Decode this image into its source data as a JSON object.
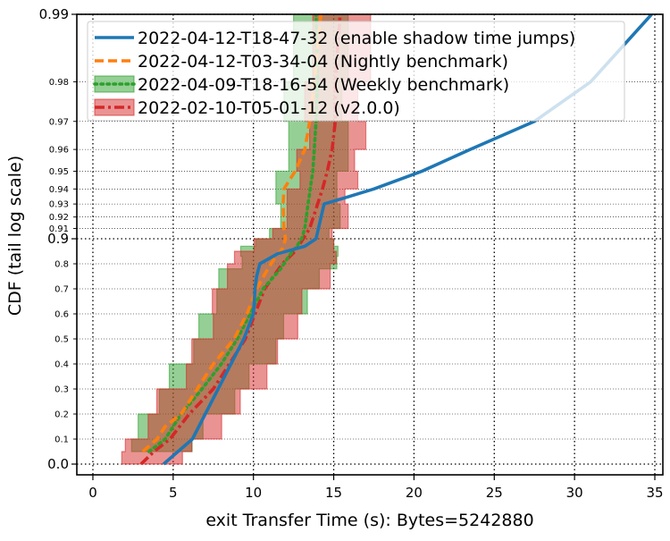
{
  "chart_data": {
    "type": "line",
    "xlabel": "exit Transfer Time (s): Bytes=5242880",
    "ylabel": "CDF (tail log scale)",
    "xlim": [
      -1,
      35.5
    ],
    "x_ticks": [
      "0",
      "5",
      "10",
      "15",
      "20",
      "25",
      "30",
      "35"
    ],
    "y_scale": "tail-log",
    "y_major_ticks": [
      "0.0",
      "0.9",
      "0.99"
    ],
    "y_minor_ticks": [
      "0.1",
      "0.2",
      "0.3",
      "0.4",
      "0.5",
      "0.6",
      "0.7",
      "0.8",
      "0.91",
      "0.92",
      "0.93",
      "0.94",
      "0.95",
      "0.96",
      "0.97",
      "0.98"
    ],
    "grid": true,
    "legend_position": "top",
    "series": [
      {
        "name": "2022-04-12-T18-47-32 (enable shadow time jumps)",
        "color": "#1f77b4",
        "style": "solid",
        "points": [
          [
            4.4,
            0.0
          ],
          [
            5.3,
            0.05
          ],
          [
            6.2,
            0.1
          ],
          [
            7.0,
            0.2
          ],
          [
            7.8,
            0.3
          ],
          [
            8.6,
            0.4
          ],
          [
            9.4,
            0.5
          ],
          [
            10.0,
            0.6
          ],
          [
            10.1,
            0.7
          ],
          [
            10.2,
            0.75
          ],
          [
            10.4,
            0.8
          ],
          [
            11.5,
            0.84
          ],
          [
            13.2,
            0.87
          ],
          [
            13.9,
            0.9
          ],
          [
            14.4,
            0.93
          ],
          [
            15.0,
            0.932
          ],
          [
            17.5,
            0.94
          ],
          [
            20.5,
            0.95
          ],
          [
            23.5,
            0.96
          ],
          [
            27.5,
            0.97
          ],
          [
            31.0,
            0.98
          ],
          [
            34.8,
            0.99
          ]
        ]
      },
      {
        "name": "2022-04-12-T03-34-04 (Nightly benchmark)",
        "color": "#ff7f0e",
        "style": "dashed",
        "points": [
          [
            3.1,
            0.05
          ],
          [
            4.0,
            0.1
          ],
          [
            4.5,
            0.15
          ],
          [
            5.5,
            0.2
          ],
          [
            6.5,
            0.3
          ],
          [
            7.5,
            0.4
          ],
          [
            8.8,
            0.5
          ],
          [
            9.6,
            0.6
          ],
          [
            10.2,
            0.7
          ],
          [
            10.9,
            0.78
          ],
          [
            11.3,
            0.82
          ],
          [
            11.8,
            0.86
          ],
          [
            12.0,
            0.9
          ],
          [
            11.9,
            0.91
          ],
          [
            11.85,
            0.93
          ],
          [
            11.9,
            0.94
          ],
          [
            12.6,
            0.95
          ],
          [
            13.2,
            0.96
          ],
          [
            13.5,
            0.97
          ],
          [
            13.8,
            0.98
          ],
          [
            14.2,
            0.99
          ]
        ]
      },
      {
        "name": "2022-04-09-T18-16-54 (Weekly benchmark)",
        "color": "#2ca02c",
        "style": "dotted",
        "points": [
          [
            3.5,
            0.05
          ],
          [
            4.5,
            0.1
          ],
          [
            5.5,
            0.2
          ],
          [
            6.8,
            0.3
          ],
          [
            8.0,
            0.4
          ],
          [
            9.0,
            0.5
          ],
          [
            9.8,
            0.6
          ],
          [
            10.6,
            0.7
          ],
          [
            11.7,
            0.78
          ],
          [
            12.2,
            0.83
          ],
          [
            12.7,
            0.87
          ],
          [
            13.0,
            0.9
          ],
          [
            13.2,
            0.91
          ],
          [
            13.4,
            0.93
          ],
          [
            13.7,
            0.95
          ],
          [
            13.9,
            0.97
          ],
          [
            14.0,
            0.98
          ],
          [
            13.9,
            0.99
          ]
        ]
      },
      {
        "name": "2022-02-10-T05-01-12 (v2.0.0)",
        "color": "#d62728",
        "style": "dashdot",
        "points": [
          [
            3.0,
            0.0
          ],
          [
            3.8,
            0.05
          ],
          [
            4.8,
            0.1
          ],
          [
            6.0,
            0.2
          ],
          [
            7.5,
            0.3
          ],
          [
            8.5,
            0.4
          ],
          [
            9.5,
            0.5
          ],
          [
            10.1,
            0.6
          ],
          [
            10.7,
            0.7
          ],
          [
            11.8,
            0.8
          ],
          [
            12.6,
            0.85
          ],
          [
            13.1,
            0.9
          ],
          [
            13.5,
            0.91
          ],
          [
            14.0,
            0.93
          ],
          [
            14.3,
            0.94
          ],
          [
            14.6,
            0.95
          ],
          [
            14.9,
            0.96
          ],
          [
            15.1,
            0.97
          ],
          [
            15.1,
            0.98
          ],
          [
            15.4,
            0.99
          ]
        ]
      }
    ]
  }
}
